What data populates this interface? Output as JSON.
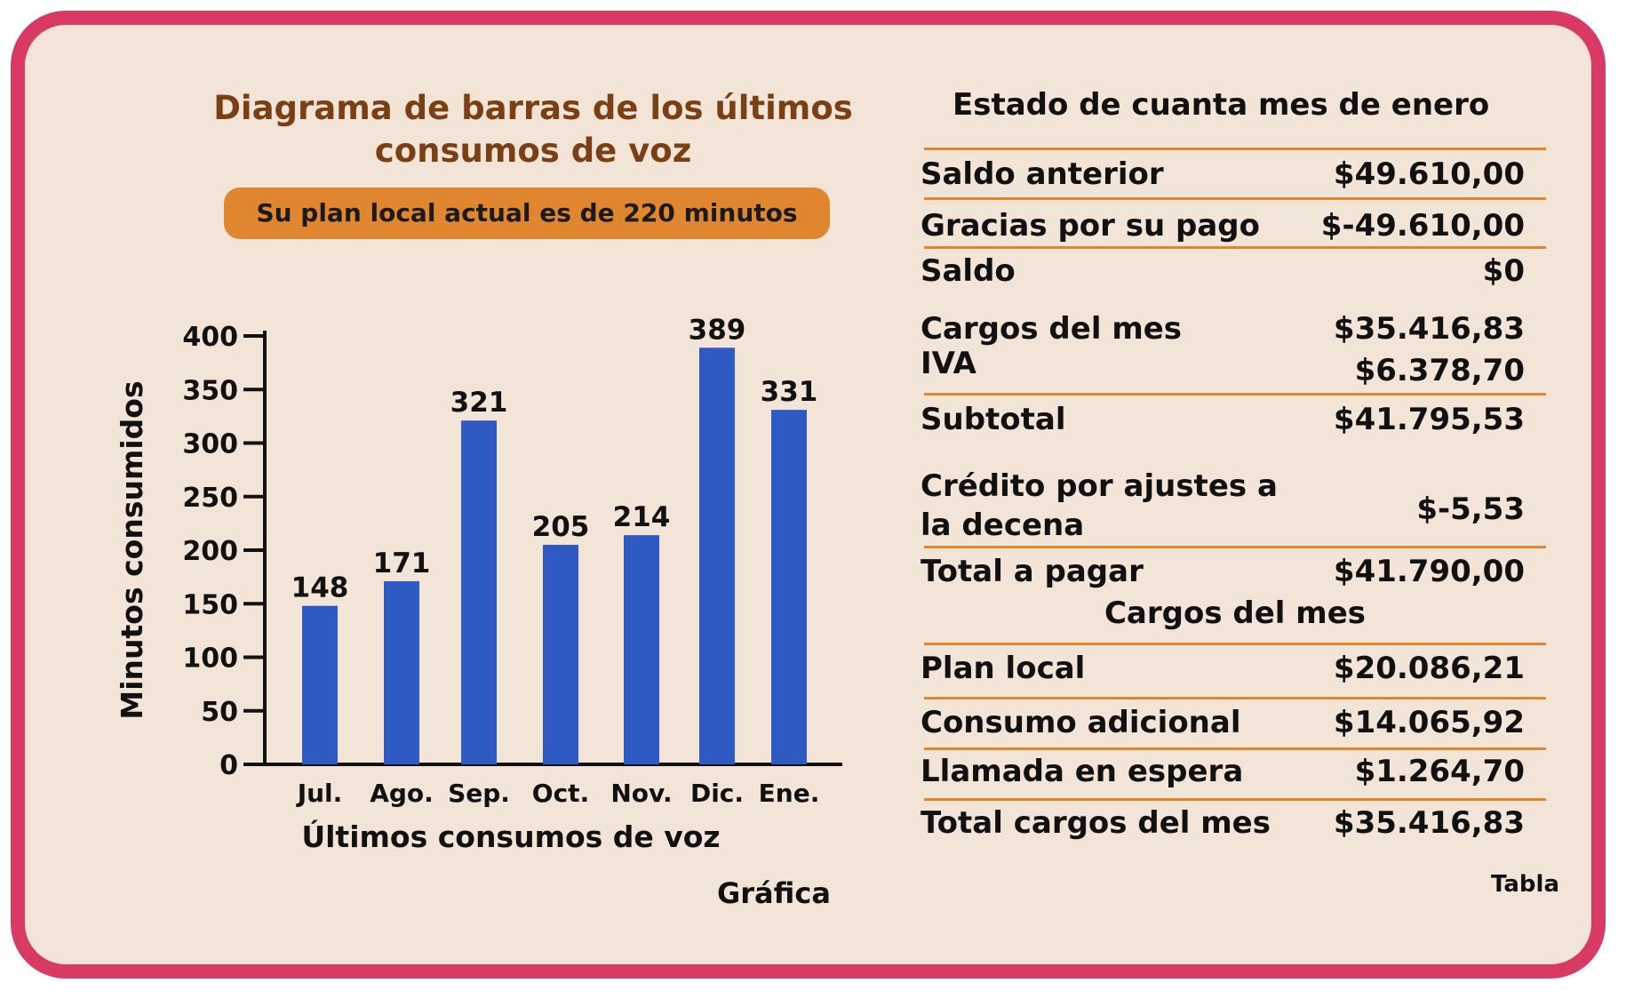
{
  "chart_title": "Diagrama de barras de los últimos consumos de voz",
  "plan_note": "Su plan local actual es de 220 minutos",
  "chart_caption": "Gráfica",
  "chart_data": {
    "type": "bar",
    "categories": [
      "Jul.",
      "Ago.",
      "Sep.",
      "Oct.",
      "Nov.",
      "Dic.",
      "Ene."
    ],
    "values": [
      148,
      171,
      321,
      205,
      214,
      389,
      331
    ],
    "xlabel": "Últimos consumos de voz",
    "ylabel": "Minutos consumidos",
    "ylim": [
      0,
      400
    ],
    "yticks": [
      0,
      50,
      100,
      150,
      200,
      250,
      300,
      350,
      400
    ],
    "bar_color": "#2f5ac4",
    "grid": false
  },
  "statement": {
    "title": "Estado de cuanta mes de enero",
    "rows": [
      {
        "label": "Saldo anterior",
        "value": "$49.610,00"
      },
      {
        "label": "Gracias por su pago",
        "value": "$-49.610,00"
      },
      {
        "label": "Saldo",
        "value": "$0"
      },
      {
        "label": "Cargos del mes",
        "value": "$35.416,83"
      },
      {
        "label": "IVA",
        "value": "$6.378,70"
      },
      {
        "label": "Subtotal",
        "value": "$41.795,53"
      },
      {
        "label_line1": "Crédito por ajustes a",
        "label_line2": "la decena",
        "value": "$-5,53"
      },
      {
        "label": "Total a pagar",
        "value": "$41.790,00"
      }
    ],
    "charges_title": "Cargos del mes",
    "charges": [
      {
        "label": "Plan local",
        "value": "$20.086,21"
      },
      {
        "label": "Consumo adicional",
        "value": "$14.065,92"
      },
      {
        "label": "Llamada en espera",
        "value": "$1.264,70"
      },
      {
        "label": "Total cargos del mes",
        "value": "$35.416,83"
      }
    ],
    "caption": "Tabla"
  },
  "colors": {
    "frame": "#d93a63",
    "background": "#f3e4d8",
    "accent": "#e0862f",
    "title": "#7b3f14"
  }
}
